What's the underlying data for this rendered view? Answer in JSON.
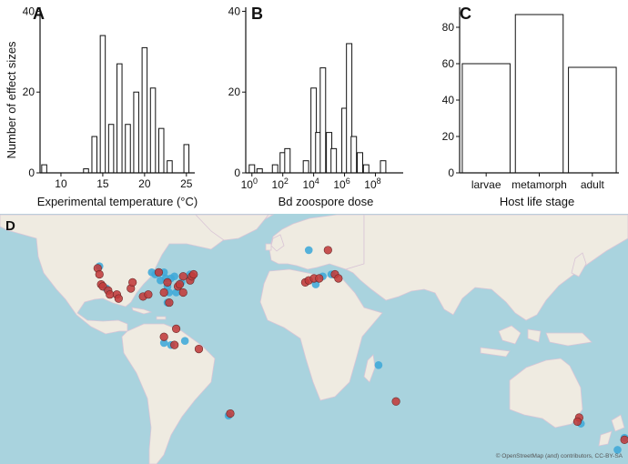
{
  "chart_data": [
    {
      "panel": "A",
      "type": "bar",
      "title": "",
      "xlabel": "Experimental temperature (°C)",
      "ylabel": "Number of effect sizes",
      "xlim": [
        7.5,
        26
      ],
      "ylim": [
        0,
        41
      ],
      "xticks": [
        "10",
        "15",
        "20",
        "25"
      ],
      "yticks": [
        "0",
        "20",
        "40"
      ],
      "bin_width": 0.6,
      "x": [
        8,
        13,
        14,
        15,
        16,
        17,
        18,
        19,
        20,
        21,
        22,
        23,
        25
      ],
      "values": [
        2,
        1,
        9,
        34,
        12,
        27,
        12,
        20,
        31,
        21,
        11,
        3,
        7
      ]
    },
    {
      "panel": "B",
      "type": "bar",
      "title": "",
      "xlabel": "Bd zoospore dose",
      "ylabel": "",
      "xlim": [
        -0.4,
        9.8
      ],
      "ylim": [
        0,
        41
      ],
      "xticks": [
        "10^0",
        "10^2",
        "10^4",
        "10^6",
        "10^8"
      ],
      "yticks": [
        "0",
        "20",
        "40"
      ],
      "bin_width": 0.35,
      "x": [
        0,
        0.5,
        1.5,
        2,
        2.3,
        3.5,
        4,
        4.3,
        4.6,
        5,
        5.3,
        6,
        6.3,
        6.6,
        7,
        7.4,
        8.5
      ],
      "values": [
        2,
        1,
        2,
        5,
        6,
        3,
        21,
        10,
        26,
        10,
        6,
        16,
        32,
        9,
        5,
        2,
        3
      ]
    },
    {
      "panel": "C",
      "type": "bar",
      "title": "",
      "xlabel": "Host life stage",
      "ylabel": "",
      "ylim": [
        0,
        91
      ],
      "yticks": [
        "0",
        "20",
        "40",
        "60",
        "80"
      ],
      "categories": [
        "larvae",
        "metamorph",
        "adult"
      ],
      "values": [
        60,
        87,
        58
      ]
    },
    {
      "panel": "D",
      "type": "scatter",
      "title": "",
      "xlabel": "",
      "ylabel": "",
      "x_unit": "longitude",
      "y_unit": "latitude",
      "xlim": [
        -180,
        180
      ],
      "ylim": [
        -50,
        74
      ],
      "series": [
        {
          "name": "red sites",
          "color": "#c23b3b",
          "lon": [
            -124,
            -123,
            -122,
            -121,
            -118,
            -117,
            -113,
            -112,
            -105,
            -104,
            -98,
            -95,
            -89,
            -86,
            -84,
            -78,
            -77,
            -75,
            -71,
            -70,
            -69,
            -83,
            -75,
            -79,
            -86,
            -80,
            -66,
            -5,
            -3,
            0,
            3,
            8,
            12,
            14,
            47,
            152,
            151,
            178,
            -48
          ],
          "lat": [
            47,
            44,
            39,
            38,
            36,
            34,
            34,
            32,
            37,
            40,
            33,
            34,
            45,
            35,
            40,
            38,
            39,
            43,
            41,
            43,
            44,
            30,
            35,
            17,
            13,
            9,
            7,
            40,
            41,
            42,
            42,
            56,
            44,
            42,
            -19,
            -27,
            -29,
            -38,
            -25
          ]
        },
        {
          "name": "blue sites",
          "color": "#3fa8d8",
          "lon": [
            -123,
            -119,
            -93,
            -91,
            -89,
            -86,
            -88,
            -85,
            -82,
            -80,
            -84,
            -83,
            -79,
            -84,
            -76,
            -71,
            -86,
            -82,
            -74,
            -3,
            5,
            10,
            1,
            37,
            153,
            178,
            174,
            -49
          ],
          "lat": [
            48,
            37,
            45,
            44,
            45,
            45,
            41,
            42,
            42,
            43,
            38,
            35,
            35,
            30,
            40,
            44,
            10,
            9,
            11,
            56,
            43,
            44,
            39,
            -1,
            -30,
            -37,
            -43,
            -26
          ]
        }
      ],
      "panel_label": "D",
      "attribution": "© OpenStreetMap (and) contributors, CC-BY-SA"
    }
  ]
}
